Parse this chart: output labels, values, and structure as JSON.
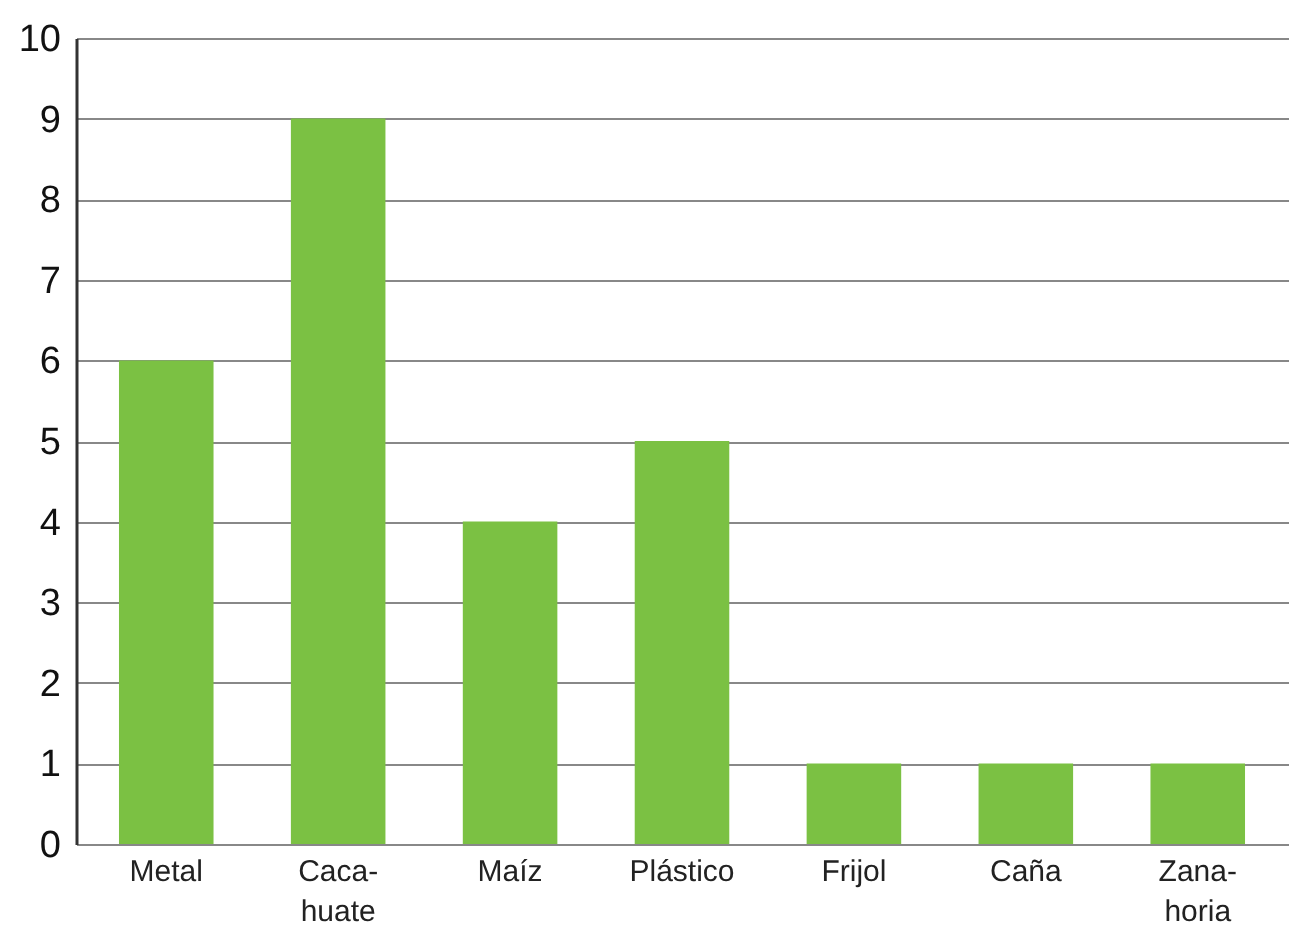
{
  "chart_data": {
    "type": "bar",
    "categories": [
      "Metal",
      "Caca-\nhuate",
      "Maíz",
      "Plástico",
      "Frijol",
      "Caña",
      "Zana-\nhoria"
    ],
    "values": [
      6,
      9,
      4,
      5,
      1,
      1,
      1
    ],
    "color": "#7bc143",
    "ylim": [
      0,
      10
    ],
    "yticks": [
      0,
      1,
      2,
      3,
      4,
      5,
      6,
      7,
      8,
      9,
      10
    ],
    "grid": "y"
  }
}
